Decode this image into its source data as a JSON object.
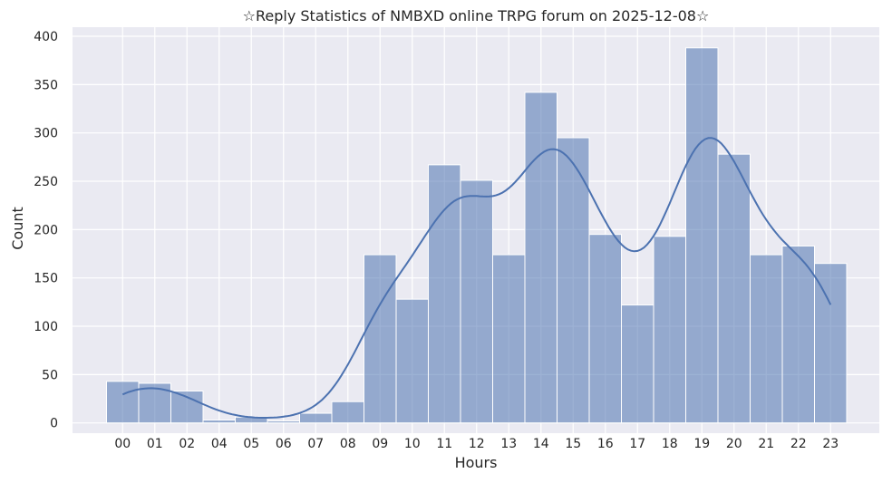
{
  "chart_data": {
    "type": "bar",
    "title": "☆Reply Statistics of NMBXD online TRPG forum on 2025-12-08☆",
    "xlabel": "Hours",
    "ylabel": "Count",
    "categories": [
      "00",
      "01",
      "02",
      "04",
      "05",
      "06",
      "07",
      "08",
      "09",
      "10",
      "11",
      "12",
      "13",
      "14",
      "15",
      "16",
      "17",
      "18",
      "19",
      "20",
      "21",
      "22",
      "23"
    ],
    "values": [
      43,
      41,
      33,
      3,
      6,
      2,
      10,
      22,
      174,
      128,
      267,
      251,
      174,
      342,
      295,
      195,
      122,
      193,
      388,
      278,
      174,
      183,
      165
    ],
    "ylim": [
      0,
      410
    ],
    "yticks": [
      0,
      50,
      100,
      150,
      200,
      250,
      300,
      350,
      400
    ],
    "grid": true,
    "kde": true,
    "colors": {
      "bar": "#4c72b0",
      "background": "#eaeaf2",
      "grid": "#ffffff"
    }
  }
}
